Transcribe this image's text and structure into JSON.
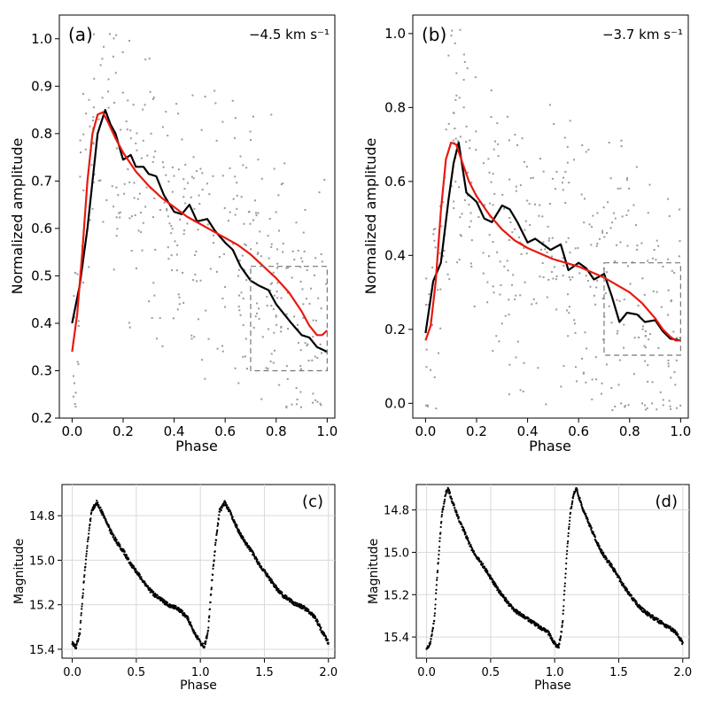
{
  "chart_data": [
    {
      "panel": "(a)",
      "type": "scatter",
      "annotation": "−4.5 km s⁻¹",
      "xlabel": "Phase",
      "ylabel": "Normalized amplitude",
      "xlim": [
        -0.05,
        1.03
      ],
      "ylim": [
        0.2,
        1.05
      ],
      "xticks": [
        "0.0",
        "0.2",
        "0.4",
        "0.6",
        "0.8",
        "1.0"
      ],
      "yticks": [
        "0.2",
        "0.3",
        "0.4",
        "0.5",
        "0.6",
        "0.7",
        "0.8",
        "0.9",
        "1.0"
      ],
      "inset_box": {
        "x": [
          0.7,
          1.0
        ],
        "y": [
          0.3,
          0.52
        ]
      },
      "series": [
        {
          "color": "#000000",
          "x": [
            0.0,
            0.03,
            0.06,
            0.1,
            0.13,
            0.15,
            0.17,
            0.2,
            0.23,
            0.25,
            0.28,
            0.3,
            0.33,
            0.36,
            0.4,
            0.43,
            0.46,
            0.49,
            0.53,
            0.56,
            0.6,
            0.63,
            0.66,
            0.7,
            0.73,
            0.77,
            0.8,
            0.83,
            0.86,
            0.9,
            0.93,
            0.96,
            1.0
          ],
          "y": [
            0.4,
            0.48,
            0.6,
            0.8,
            0.85,
            0.82,
            0.8,
            0.745,
            0.755,
            0.73,
            0.73,
            0.715,
            0.71,
            0.67,
            0.635,
            0.63,
            0.65,
            0.615,
            0.62,
            0.595,
            0.57,
            0.555,
            0.52,
            0.49,
            0.48,
            0.47,
            0.44,
            0.42,
            0.4,
            0.375,
            0.37,
            0.35,
            0.34
          ]
        },
        {
          "color": "#e8190f",
          "x": [
            0.0,
            0.02,
            0.04,
            0.06,
            0.08,
            0.1,
            0.12,
            0.14,
            0.17,
            0.2,
            0.25,
            0.3,
            0.35,
            0.4,
            0.45,
            0.5,
            0.55,
            0.6,
            0.65,
            0.7,
            0.75,
            0.8,
            0.85,
            0.9,
            0.93,
            0.96,
            0.98,
            1.0
          ],
          "y": [
            0.34,
            0.42,
            0.55,
            0.7,
            0.8,
            0.84,
            0.845,
            0.825,
            0.79,
            0.76,
            0.72,
            0.69,
            0.665,
            0.645,
            0.625,
            0.61,
            0.595,
            0.58,
            0.565,
            0.545,
            0.52,
            0.495,
            0.465,
            0.425,
            0.395,
            0.375,
            0.375,
            0.385
          ]
        }
      ]
    },
    {
      "panel": "(b)",
      "type": "scatter",
      "annotation": "−3.7 km s⁻¹",
      "xlabel": "Phase",
      "ylabel": "Normalized amplitude",
      "xlim": [
        -0.05,
        1.03
      ],
      "ylim": [
        -0.04,
        1.05
      ],
      "xticks": [
        "0.0",
        "0.2",
        "0.4",
        "0.6",
        "0.8",
        "1.0"
      ],
      "yticks": [
        "0.0",
        "0.2",
        "0.4",
        "0.6",
        "0.8",
        "1.0"
      ],
      "inset_box": {
        "x": [
          0.7,
          1.0
        ],
        "y": [
          0.13,
          0.38
        ]
      },
      "series": [
        {
          "color": "#000000",
          "x": [
            0.0,
            0.03,
            0.06,
            0.09,
            0.11,
            0.13,
            0.16,
            0.2,
            0.23,
            0.26,
            0.3,
            0.33,
            0.36,
            0.4,
            0.43,
            0.46,
            0.49,
            0.53,
            0.56,
            0.6,
            0.63,
            0.66,
            0.7,
            0.73,
            0.76,
            0.79,
            0.83,
            0.86,
            0.9,
            0.93,
            0.96,
            1.0
          ],
          "y": [
            0.19,
            0.33,
            0.38,
            0.55,
            0.65,
            0.705,
            0.57,
            0.545,
            0.5,
            0.49,
            0.535,
            0.525,
            0.49,
            0.435,
            0.445,
            0.43,
            0.415,
            0.43,
            0.36,
            0.38,
            0.365,
            0.335,
            0.35,
            0.29,
            0.22,
            0.245,
            0.24,
            0.22,
            0.225,
            0.195,
            0.175,
            0.17
          ]
        },
        {
          "color": "#e8190f",
          "x": [
            0.0,
            0.02,
            0.04,
            0.06,
            0.08,
            0.1,
            0.12,
            0.14,
            0.17,
            0.2,
            0.25,
            0.3,
            0.35,
            0.4,
            0.45,
            0.5,
            0.55,
            0.6,
            0.65,
            0.7,
            0.75,
            0.8,
            0.85,
            0.9,
            0.93,
            0.96,
            0.98,
            1.0
          ],
          "y": [
            0.17,
            0.21,
            0.33,
            0.52,
            0.66,
            0.705,
            0.7,
            0.66,
            0.6,
            0.56,
            0.51,
            0.47,
            0.44,
            0.42,
            0.405,
            0.39,
            0.38,
            0.37,
            0.355,
            0.34,
            0.32,
            0.3,
            0.27,
            0.23,
            0.2,
            0.18,
            0.17,
            0.17
          ]
        }
      ]
    },
    {
      "panel": "(c)",
      "type": "scatter",
      "xlabel": "Phase",
      "ylabel": "Magnitude",
      "xlim": [
        -0.08,
        2.05
      ],
      "ylim": [
        15.44,
        14.66
      ],
      "inverted_y": true,
      "grid": true,
      "xticks": [
        "0.0",
        "0.5",
        "1.0",
        "1.5",
        "2.0"
      ],
      "yticks": [
        "14.8",
        "15.0",
        "15.2",
        "15.4"
      ],
      "series": [
        {
          "color": "#000000",
          "x": [
            0.0,
            0.03,
            0.06,
            0.09,
            0.12,
            0.15,
            0.19,
            0.22,
            0.26,
            0.3,
            0.35,
            0.4,
            0.45,
            0.5,
            0.55,
            0.6,
            0.65,
            0.7,
            0.75,
            0.8,
            0.85,
            0.9,
            0.95,
            1.0,
            1.03,
            1.06,
            1.09,
            1.12,
            1.15,
            1.19,
            1.22,
            1.26,
            1.3,
            1.35,
            1.4,
            1.45,
            1.5,
            1.55,
            1.6,
            1.65,
            1.7,
            1.75,
            1.8,
            1.85,
            1.9,
            1.95,
            2.0
          ],
          "y": [
            15.37,
            15.39,
            15.32,
            15.1,
            14.92,
            14.78,
            14.74,
            14.77,
            14.82,
            14.87,
            14.92,
            14.96,
            15.01,
            15.05,
            15.09,
            15.13,
            15.16,
            15.18,
            15.2,
            15.21,
            15.23,
            15.26,
            15.32,
            15.37,
            15.39,
            15.32,
            15.1,
            14.92,
            14.78,
            14.74,
            14.77,
            14.82,
            14.87,
            14.92,
            14.96,
            15.01,
            15.05,
            15.09,
            15.13,
            15.16,
            15.18,
            15.2,
            15.21,
            15.23,
            15.26,
            15.32,
            15.37
          ]
        }
      ]
    },
    {
      "panel": "(d)",
      "type": "scatter",
      "xlabel": "Phase",
      "ylabel": "Magnitude",
      "xlim": [
        -0.08,
        2.05
      ],
      "ylim": [
        15.5,
        14.68
      ],
      "inverted_y": true,
      "grid": true,
      "xticks": [
        "0.0",
        "0.5",
        "1.0",
        "1.5",
        "2.0"
      ],
      "yticks": [
        "14.8",
        "15.0",
        "15.2",
        "15.4"
      ],
      "series": [
        {
          "color": "#000000",
          "x": [
            0.0,
            0.03,
            0.06,
            0.09,
            0.12,
            0.15,
            0.17,
            0.2,
            0.25,
            0.3,
            0.35,
            0.4,
            0.45,
            0.5,
            0.55,
            0.6,
            0.65,
            0.7,
            0.75,
            0.8,
            0.85,
            0.9,
            0.95,
            1.0,
            1.03,
            1.06,
            1.09,
            1.12,
            1.15,
            1.17,
            1.2,
            1.25,
            1.3,
            1.35,
            1.4,
            1.45,
            1.5,
            1.55,
            1.6,
            1.65,
            1.7,
            1.75,
            1.8,
            1.85,
            1.9,
            1.95,
            2.0
          ],
          "y": [
            15.45,
            15.43,
            15.32,
            15.05,
            14.82,
            14.72,
            14.7,
            14.76,
            14.84,
            14.91,
            14.98,
            15.03,
            15.07,
            15.12,
            15.17,
            15.21,
            15.25,
            15.28,
            15.3,
            15.32,
            15.34,
            15.36,
            15.38,
            15.43,
            15.45,
            15.35,
            15.05,
            14.82,
            14.72,
            14.7,
            14.76,
            14.84,
            14.91,
            14.98,
            15.03,
            15.07,
            15.12,
            15.17,
            15.21,
            15.25,
            15.28,
            15.3,
            15.32,
            15.34,
            15.36,
            15.38,
            15.43
          ]
        }
      ]
    }
  ]
}
